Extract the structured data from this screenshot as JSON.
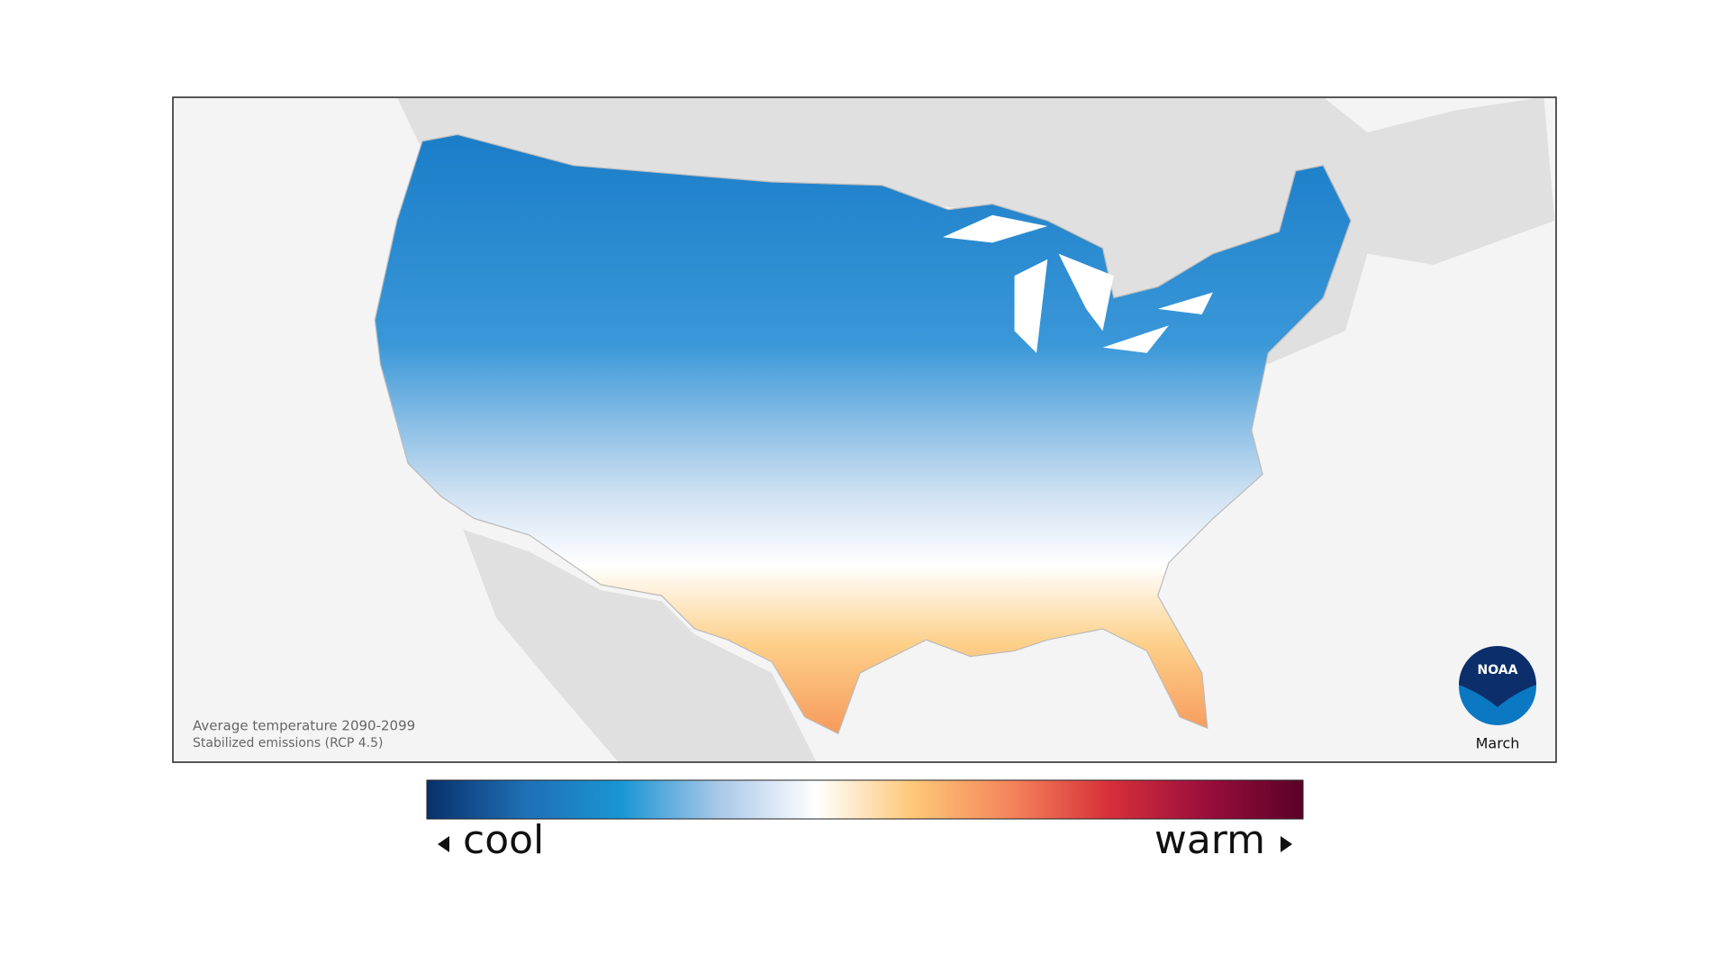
{
  "map": {
    "caption_line_1": "Average temperature 2090-2099",
    "caption_line_2": "Stabilized emissions (RCP 4.5)",
    "logo_text": "NOAA",
    "month": "March"
  },
  "legend": {
    "low_label": "cool",
    "high_label": "warm",
    "colors": [
      "#08306b",
      "#1f6fb4",
      "#1a96d4",
      "#a9c8e8",
      "#ffffff",
      "#fdc777",
      "#f4845a",
      "#d7303a",
      "#9b0e3c",
      "#5a0028"
    ]
  }
}
